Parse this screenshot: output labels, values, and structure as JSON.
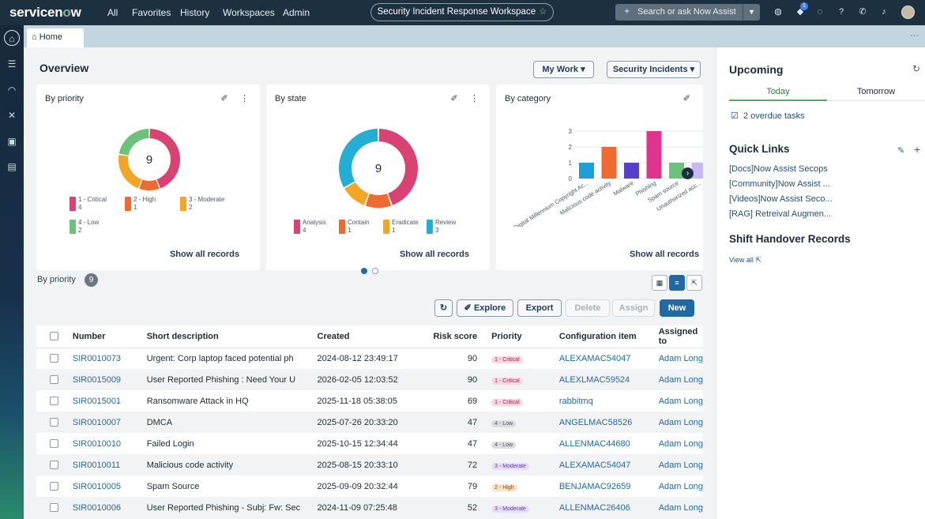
{
  "brand": {
    "logo_pre": "servicen",
    "logo_o": "o",
    "logo_post": "w"
  },
  "topnav": {
    "items": [
      "All",
      "Favorites",
      "History",
      "Workspaces",
      "Admin"
    ],
    "workspace": "Security Incident Response Workspace",
    "search_placeholder": "Search or ask Now Assist",
    "notification_count": "1"
  },
  "tabs": {
    "home": "Home"
  },
  "overview": {
    "title": "Overview",
    "my_work": "My Work",
    "security_incidents": "Security Incidents"
  },
  "cards": [
    {
      "title": "By priority",
      "total": "9",
      "show_all": "Show all records",
      "legend": [
        {
          "label": "1 - Critical",
          "count": "4",
          "color": "#d84373"
        },
        {
          "label": "2 - High",
          "count": "1",
          "color": "#ef6a2f"
        },
        {
          "label": "3 - Moderate",
          "count": "2",
          "color": "#f3a623"
        },
        {
          "label": "4 - Low",
          "count": "2",
          "color": "#6bc27b"
        }
      ]
    },
    {
      "title": "By state",
      "total": "9",
      "show_all": "Show all records",
      "legend": [
        {
          "label": "Analysis",
          "count": "4",
          "color": "#d84373"
        },
        {
          "label": "Contain",
          "count": "1",
          "color": "#ef6a2f"
        },
        {
          "label": "Eradicate",
          "count": "1",
          "color": "#f3a623"
        },
        {
          "label": "Review",
          "count": "3",
          "color": "#23aed4"
        }
      ]
    },
    {
      "title": "By category",
      "show_all": "Show all records"
    }
  ],
  "chart_data": [
    {
      "type": "pie",
      "title": "By priority",
      "categories": [
        "1 - Critical",
        "2 - High",
        "3 - Moderate",
        "4 - Low"
      ],
      "values": [
        4,
        1,
        2,
        2
      ],
      "colors": [
        "#d84373",
        "#ef6a2f",
        "#f3a623",
        "#6bc27b"
      ]
    },
    {
      "type": "pie",
      "title": "By state",
      "categories": [
        "Analysis",
        "Contain",
        "Eradicate",
        "Review"
      ],
      "values": [
        4,
        1,
        1,
        3
      ],
      "colors": [
        "#d84373",
        "#ef6a2f",
        "#f3a623",
        "#23aed4"
      ]
    },
    {
      "type": "bar",
      "title": "By category",
      "categories": [
        "Digital Millennium Copyright Ac...",
        "Malicious code activity",
        "Malware",
        "Phishing",
        "Spam source",
        "Unauthorized acc..."
      ],
      "values": [
        1,
        2,
        1,
        3,
        1,
        1
      ],
      "colors": [
        "#1f9fd8",
        "#ef6a2f",
        "#5a3ec8",
        "#e0328f",
        "#6bc27b",
        "#c7b7f5"
      ],
      "yticks": [
        "0",
        "1",
        "2",
        "3"
      ],
      "ylim": [
        0,
        3
      ]
    }
  ],
  "list": {
    "title": "By priority",
    "count": "9",
    "buttons": {
      "explore": "Explore",
      "export": "Export",
      "delete": "Delete",
      "assign": "Assign",
      "new": "New"
    },
    "columns": [
      "Number",
      "Short description",
      "Created",
      "Risk score",
      "Priority",
      "Configuration item",
      "Assigned to"
    ],
    "rows": [
      {
        "number": "SIR0010073",
        "desc": "Urgent: Corp laptop faced potential ph",
        "created": "2024-08-12 23:49:17",
        "risk": "90",
        "priority": "1 - Critical",
        "ci": "ALEXAMAC54047",
        "assigned": "Adam Long"
      },
      {
        "number": "SIR0015009",
        "desc": "User Reported Phishing :  Need Your U",
        "created": "2026-02-05 12:03:52",
        "risk": "90",
        "priority": "1 - Critical",
        "ci": "ALEXLMAC59524",
        "assigned": "Adam Long"
      },
      {
        "number": "SIR0015001",
        "desc": "Ransomware Attack in HQ",
        "created": "2025-11-18 05:38:05",
        "risk": "69",
        "priority": "1 - Critical",
        "ci": "rabbitmq",
        "assigned": "Adam Long"
      },
      {
        "number": "SIR0010007",
        "desc": "DMCA",
        "created": "2025-07-26 20:33:20",
        "risk": "47",
        "priority": "4 - Low",
        "ci": "ANGELMAC58526",
        "assigned": "Adam Long"
      },
      {
        "number": "SIR0010010",
        "desc": "Failed Login",
        "created": "2025-10-15 12:34:44",
        "risk": "47",
        "priority": "4 - Low",
        "ci": "ALLENMAC44680",
        "assigned": "Adam Long"
      },
      {
        "number": "SIR0010011",
        "desc": "Malicious code activity",
        "created": "2025-08-15 20:33:10",
        "risk": "72",
        "priority": "3 - Moderate",
        "ci": "ALEXAMAC54047",
        "assigned": "Adam Long"
      },
      {
        "number": "SIR0010005",
        "desc": "Spam Source",
        "created": "2025-09-09 20:32:44",
        "risk": "79",
        "priority": "2 - High",
        "ci": "BENJAMAC92659",
        "assigned": "Adam Long"
      },
      {
        "number": "SIR0010006",
        "desc": "User Reported Phishing - Subj: Fw: Sec",
        "created": "2024-11-09 07:25:48",
        "risk": "52",
        "priority": "3 - Moderate",
        "ci": "ALLENMAC26406",
        "assigned": "Adam Long"
      }
    ]
  },
  "priority_styles": {
    "1 - Critical": {
      "bg": "#f8d7e0",
      "fg": "#a3214b"
    },
    "2 - High": {
      "bg": "#fbe3c4",
      "fg": "#8a4a10"
    },
    "3 - Moderate": {
      "bg": "#e7ddfa",
      "fg": "#5b3ca8"
    },
    "4 - Low": {
      "bg": "#dcdfe2",
      "fg": "#444f58"
    }
  },
  "upcoming": {
    "title": "Upcoming",
    "tab_today": "Today",
    "tab_tomorrow": "Tomorrow",
    "overdue": "2 overdue tasks"
  },
  "quick_links": {
    "title": "Quick Links",
    "items": [
      "[Docs]Now Assist Secops",
      "[Community]Now Assist ...",
      "[Videos]Now Assist Seco...",
      "[RAG] Retreival Augmen..."
    ]
  },
  "shift": {
    "title": "Shift Handover Records",
    "view_all": "View all"
  }
}
